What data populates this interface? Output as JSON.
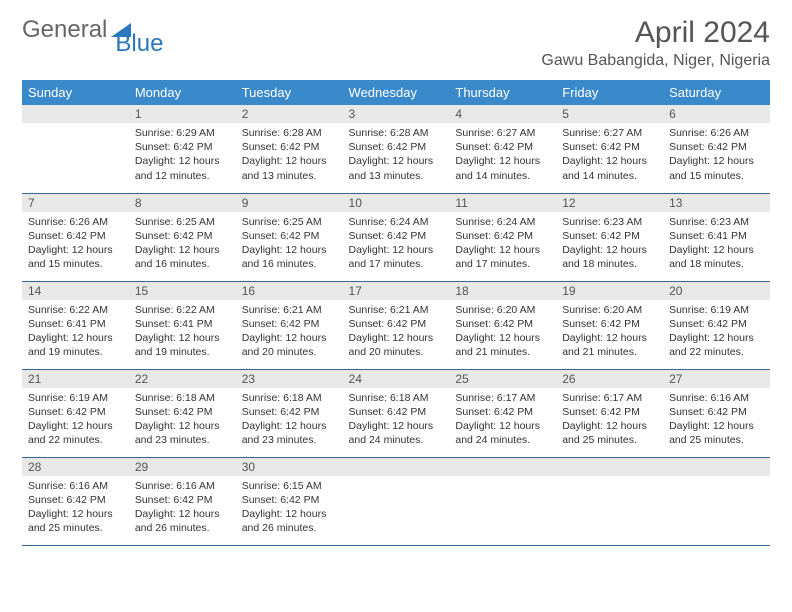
{
  "brand": {
    "part1": "General",
    "part2": "Blue"
  },
  "title": "April 2024",
  "location": "Gawu Babangida, Niger, Nigeria",
  "colors": {
    "header_bg": "#3a8acb",
    "header_text": "#ffffff",
    "daynum_bg": "#e8e8e8",
    "row_border": "#2a6aa0",
    "brand_blue": "#2a77bd",
    "text": "#333333"
  },
  "weekdays": [
    "Sunday",
    "Monday",
    "Tuesday",
    "Wednesday",
    "Thursday",
    "Friday",
    "Saturday"
  ],
  "start_offset": 1,
  "days": [
    {
      "n": 1,
      "sr": "6:29 AM",
      "ss": "6:42 PM",
      "dl": "12 hours and 12 minutes."
    },
    {
      "n": 2,
      "sr": "6:28 AM",
      "ss": "6:42 PM",
      "dl": "12 hours and 13 minutes."
    },
    {
      "n": 3,
      "sr": "6:28 AM",
      "ss": "6:42 PM",
      "dl": "12 hours and 13 minutes."
    },
    {
      "n": 4,
      "sr": "6:27 AM",
      "ss": "6:42 PM",
      "dl": "12 hours and 14 minutes."
    },
    {
      "n": 5,
      "sr": "6:27 AM",
      "ss": "6:42 PM",
      "dl": "12 hours and 14 minutes."
    },
    {
      "n": 6,
      "sr": "6:26 AM",
      "ss": "6:42 PM",
      "dl": "12 hours and 15 minutes."
    },
    {
      "n": 7,
      "sr": "6:26 AM",
      "ss": "6:42 PM",
      "dl": "12 hours and 15 minutes."
    },
    {
      "n": 8,
      "sr": "6:25 AM",
      "ss": "6:42 PM",
      "dl": "12 hours and 16 minutes."
    },
    {
      "n": 9,
      "sr": "6:25 AM",
      "ss": "6:42 PM",
      "dl": "12 hours and 16 minutes."
    },
    {
      "n": 10,
      "sr": "6:24 AM",
      "ss": "6:42 PM",
      "dl": "12 hours and 17 minutes."
    },
    {
      "n": 11,
      "sr": "6:24 AM",
      "ss": "6:42 PM",
      "dl": "12 hours and 17 minutes."
    },
    {
      "n": 12,
      "sr": "6:23 AM",
      "ss": "6:42 PM",
      "dl": "12 hours and 18 minutes."
    },
    {
      "n": 13,
      "sr": "6:23 AM",
      "ss": "6:41 PM",
      "dl": "12 hours and 18 minutes."
    },
    {
      "n": 14,
      "sr": "6:22 AM",
      "ss": "6:41 PM",
      "dl": "12 hours and 19 minutes."
    },
    {
      "n": 15,
      "sr": "6:22 AM",
      "ss": "6:41 PM",
      "dl": "12 hours and 19 minutes."
    },
    {
      "n": 16,
      "sr": "6:21 AM",
      "ss": "6:42 PM",
      "dl": "12 hours and 20 minutes."
    },
    {
      "n": 17,
      "sr": "6:21 AM",
      "ss": "6:42 PM",
      "dl": "12 hours and 20 minutes."
    },
    {
      "n": 18,
      "sr": "6:20 AM",
      "ss": "6:42 PM",
      "dl": "12 hours and 21 minutes."
    },
    {
      "n": 19,
      "sr": "6:20 AM",
      "ss": "6:42 PM",
      "dl": "12 hours and 21 minutes."
    },
    {
      "n": 20,
      "sr": "6:19 AM",
      "ss": "6:42 PM",
      "dl": "12 hours and 22 minutes."
    },
    {
      "n": 21,
      "sr": "6:19 AM",
      "ss": "6:42 PM",
      "dl": "12 hours and 22 minutes."
    },
    {
      "n": 22,
      "sr": "6:18 AM",
      "ss": "6:42 PM",
      "dl": "12 hours and 23 minutes."
    },
    {
      "n": 23,
      "sr": "6:18 AM",
      "ss": "6:42 PM",
      "dl": "12 hours and 23 minutes."
    },
    {
      "n": 24,
      "sr": "6:18 AM",
      "ss": "6:42 PM",
      "dl": "12 hours and 24 minutes."
    },
    {
      "n": 25,
      "sr": "6:17 AM",
      "ss": "6:42 PM",
      "dl": "12 hours and 24 minutes."
    },
    {
      "n": 26,
      "sr": "6:17 AM",
      "ss": "6:42 PM",
      "dl": "12 hours and 25 minutes."
    },
    {
      "n": 27,
      "sr": "6:16 AM",
      "ss": "6:42 PM",
      "dl": "12 hours and 25 minutes."
    },
    {
      "n": 28,
      "sr": "6:16 AM",
      "ss": "6:42 PM",
      "dl": "12 hours and 25 minutes."
    },
    {
      "n": 29,
      "sr": "6:16 AM",
      "ss": "6:42 PM",
      "dl": "12 hours and 26 minutes."
    },
    {
      "n": 30,
      "sr": "6:15 AM",
      "ss": "6:42 PM",
      "dl": "12 hours and 26 minutes."
    }
  ],
  "labels": {
    "sunrise": "Sunrise:",
    "sunset": "Sunset:",
    "daylight": "Daylight:"
  }
}
